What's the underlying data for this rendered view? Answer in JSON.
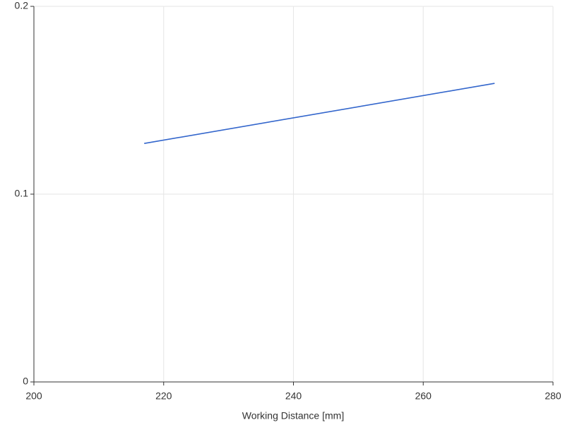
{
  "chart_data": {
    "type": "line",
    "x_label": "Working Distance [mm]",
    "x": [
      217,
      271
    ],
    "series": [
      {
        "color": "#3366cc",
        "values": [
          0.127,
          0.159
        ]
      }
    ],
    "xlim": [
      200,
      280
    ],
    "xticks": [
      200,
      220,
      240,
      260,
      280
    ],
    "ylim": [
      0,
      0.2
    ],
    "yticks": [
      0,
      0.1,
      0.2
    ],
    "grid": true
  }
}
